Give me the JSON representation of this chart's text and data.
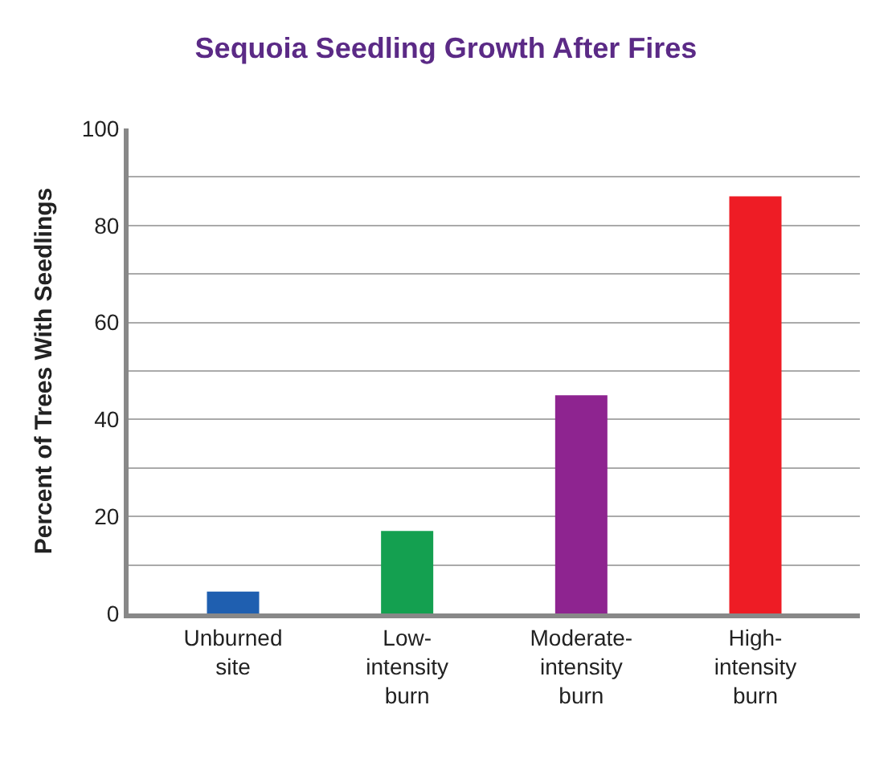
{
  "chart_data": {
    "type": "bar",
    "title": "Sequoia Seedling Growth After Fires",
    "ylabel": "Percent of Trees With Seedlings",
    "categories": [
      "Unburned site",
      "Low-intensity burn",
      "Moderate-intensity burn",
      "High-intensity burn"
    ],
    "values": [
      4.5,
      17,
      45,
      86
    ],
    "colors": [
      "#1f5fb0",
      "#14a050",
      "#8e2490",
      "#ee1c25"
    ],
    "ylim": [
      0,
      100
    ],
    "yticks": [
      0,
      {
        "value": 10,
        "label": null
      },
      20,
      {
        "value": 30,
        "label": null
      },
      40,
      {
        "value": 50,
        "label": null
      },
      60,
      {
        "value": 70,
        "label": null
      },
      80,
      {
        "value": 90,
        "label": null
      },
      100
    ],
    "grid": "y"
  }
}
